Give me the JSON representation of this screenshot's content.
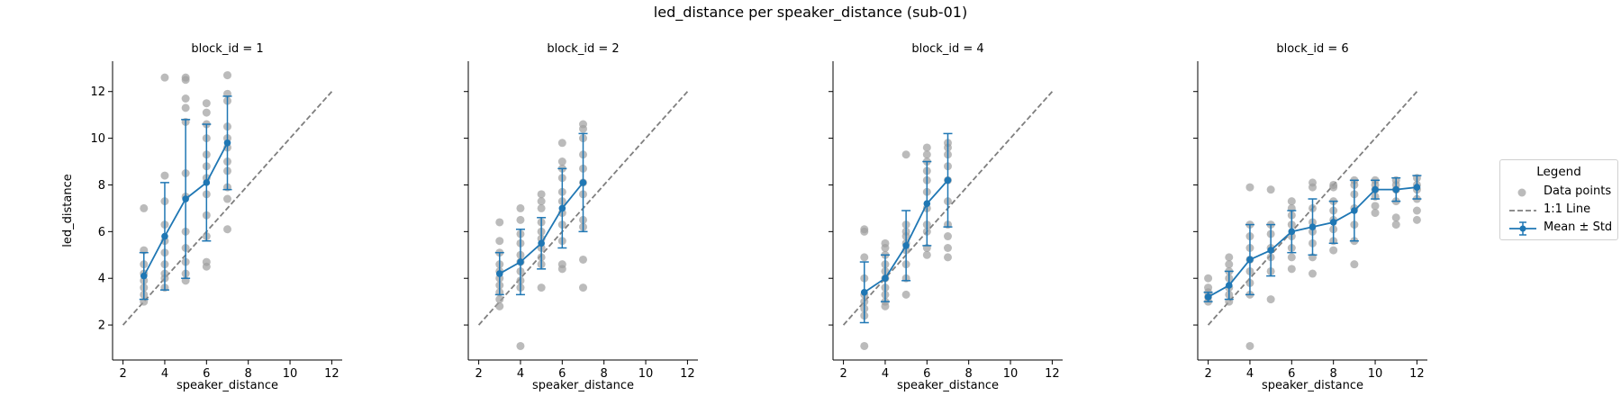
{
  "figure": {
    "title": "led_distance per speaker_distance (sub-01)",
    "xlabel": "speaker_distance",
    "ylabel": "led_distance"
  },
  "legend": {
    "title": "Legend",
    "items": [
      {
        "label": "Data points",
        "kind": "scatter"
      },
      {
        "label": "1:1 Line",
        "kind": "dashed-line"
      },
      {
        "label": "Mean ± Std",
        "kind": "errorbar"
      }
    ]
  },
  "colors": {
    "points": "#9e9e9e",
    "mean": "#1f77b4",
    "identity": "#7f7f7f",
    "axis": "#000000"
  },
  "chart_data": [
    {
      "type": "scatter",
      "title": "block_id = 1",
      "xlabel": "speaker_distance",
      "ylabel": "led_distance",
      "xlim": [
        1.5,
        12.5
      ],
      "ylim": [
        0.5,
        13.3
      ],
      "xticks": [
        2,
        4,
        6,
        8,
        10,
        12
      ],
      "yticks": [
        2,
        4,
        6,
        8,
        10,
        12
      ],
      "identity_line": [
        [
          2,
          2
        ],
        [
          12,
          12
        ]
      ],
      "points": [
        [
          3,
          3.0
        ],
        [
          3,
          3.3
        ],
        [
          3,
          3.6
        ],
        [
          3,
          3.9
        ],
        [
          3,
          4.2
        ],
        [
          3,
          4.6
        ],
        [
          3,
          5.2
        ],
        [
          3,
          7.0
        ],
        [
          4,
          3.6
        ],
        [
          4,
          4.0
        ],
        [
          4,
          4.2
        ],
        [
          4,
          4.6
        ],
        [
          4,
          5.1
        ],
        [
          4,
          5.6
        ],
        [
          4,
          6.3
        ],
        [
          4,
          7.3
        ],
        [
          4,
          8.4
        ],
        [
          4,
          12.6
        ],
        [
          5,
          3.9
        ],
        [
          5,
          4.2
        ],
        [
          5,
          4.7
        ],
        [
          5,
          5.3
        ],
        [
          5,
          6.0
        ],
        [
          5,
          7.5
        ],
        [
          5,
          8.5
        ],
        [
          5,
          10.7
        ],
        [
          5,
          11.3
        ],
        [
          5,
          11.7
        ],
        [
          5,
          12.5
        ],
        [
          5,
          12.6
        ],
        [
          6,
          4.5
        ],
        [
          6,
          4.7
        ],
        [
          6,
          5.8
        ],
        [
          6,
          6.7
        ],
        [
          6,
          7.6
        ],
        [
          6,
          8.3
        ],
        [
          6,
          8.8
        ],
        [
          6,
          9.3
        ],
        [
          6,
          10.0
        ],
        [
          6,
          10.6
        ],
        [
          6,
          11.1
        ],
        [
          6,
          11.5
        ],
        [
          7,
          6.1
        ],
        [
          7,
          7.4
        ],
        [
          7,
          7.9
        ],
        [
          7,
          8.6
        ],
        [
          7,
          9.0
        ],
        [
          7,
          9.6
        ],
        [
          7,
          10.0
        ],
        [
          7,
          10.5
        ],
        [
          7,
          11.6
        ],
        [
          7,
          11.9
        ],
        [
          7,
          12.7
        ]
      ],
      "series": [
        {
          "name": "Mean ± Std",
          "x": [
            3,
            4,
            5,
            6,
            7
          ],
          "y": [
            4.1,
            5.8,
            7.4,
            8.1,
            9.8
          ],
          "std": [
            1.0,
            2.3,
            3.4,
            2.5,
            2.0
          ]
        }
      ]
    },
    {
      "type": "scatter",
      "title": "block_id = 2",
      "xlabel": "speaker_distance",
      "xlim": [
        1.5,
        12.5
      ],
      "ylim": [
        0.5,
        13.3
      ],
      "xticks": [
        2,
        4,
        6,
        8,
        10,
        12
      ],
      "yticks": [
        2,
        4,
        6,
        8,
        10,
        12
      ],
      "identity_line": [
        [
          2,
          2
        ],
        [
          12,
          12
        ]
      ],
      "points": [
        [
          3,
          2.8
        ],
        [
          3,
          3.1
        ],
        [
          3,
          3.4
        ],
        [
          3,
          3.7
        ],
        [
          3,
          4.0
        ],
        [
          3,
          4.3
        ],
        [
          3,
          4.6
        ],
        [
          3,
          5.1
        ],
        [
          3,
          5.6
        ],
        [
          3,
          6.4
        ],
        [
          4,
          1.1
        ],
        [
          4,
          3.6
        ],
        [
          4,
          3.9
        ],
        [
          4,
          4.3
        ],
        [
          4,
          4.7
        ],
        [
          4,
          5.0
        ],
        [
          4,
          5.5
        ],
        [
          4,
          5.9
        ],
        [
          4,
          6.5
        ],
        [
          4,
          7.0
        ],
        [
          5,
          3.6
        ],
        [
          5,
          4.6
        ],
        [
          5,
          4.9
        ],
        [
          5,
          5.3
        ],
        [
          5,
          5.7
        ],
        [
          5,
          6.0
        ],
        [
          5,
          6.4
        ],
        [
          5,
          7.0
        ],
        [
          5,
          7.3
        ],
        [
          5,
          7.6
        ],
        [
          6,
          4.4
        ],
        [
          6,
          4.6
        ],
        [
          6,
          5.6
        ],
        [
          6,
          6.3
        ],
        [
          6,
          6.8
        ],
        [
          6,
          7.3
        ],
        [
          6,
          7.7
        ],
        [
          6,
          8.3
        ],
        [
          6,
          8.7
        ],
        [
          6,
          9.0
        ],
        [
          6,
          9.8
        ],
        [
          7,
          3.6
        ],
        [
          7,
          4.8
        ],
        [
          7,
          6.2
        ],
        [
          7,
          6.5
        ],
        [
          7,
          7.6
        ],
        [
          7,
          8.1
        ],
        [
          7,
          8.7
        ],
        [
          7,
          9.3
        ],
        [
          7,
          10.0
        ],
        [
          7,
          10.4
        ],
        [
          7,
          10.6
        ]
      ],
      "series": [
        {
          "name": "Mean ± Std",
          "x": [
            3,
            4,
            5,
            6,
            7
          ],
          "y": [
            4.2,
            4.7,
            5.5,
            7.0,
            8.1
          ],
          "std": [
            0.9,
            1.4,
            1.1,
            1.7,
            2.1
          ]
        }
      ]
    },
    {
      "type": "scatter",
      "title": "block_id = 4",
      "xlabel": "speaker_distance",
      "xlim": [
        1.5,
        12.5
      ],
      "ylim": [
        0.5,
        13.3
      ],
      "xticks": [
        2,
        4,
        6,
        8,
        10,
        12
      ],
      "yticks": [
        2,
        4,
        6,
        8,
        10,
        12
      ],
      "identity_line": [
        [
          2,
          2
        ],
        [
          12,
          12
        ]
      ],
      "points": [
        [
          3,
          1.1
        ],
        [
          3,
          2.4
        ],
        [
          3,
          2.7
        ],
        [
          3,
          3.0
        ],
        [
          3,
          3.3
        ],
        [
          3,
          4.0
        ],
        [
          3,
          4.9
        ],
        [
          3,
          6.0
        ],
        [
          3,
          6.1
        ],
        [
          4,
          2.8
        ],
        [
          4,
          3.0
        ],
        [
          4,
          3.3
        ],
        [
          4,
          3.6
        ],
        [
          4,
          4.0
        ],
        [
          4,
          4.3
        ],
        [
          4,
          4.6
        ],
        [
          4,
          5.0
        ],
        [
          4,
          5.3
        ],
        [
          4,
          5.5
        ],
        [
          5,
          3.3
        ],
        [
          5,
          4.0
        ],
        [
          5,
          4.6
        ],
        [
          5,
          5.2
        ],
        [
          5,
          5.5
        ],
        [
          5,
          5.8
        ],
        [
          5,
          6.0
        ],
        [
          5,
          6.3
        ],
        [
          5,
          9.3
        ],
        [
          6,
          5.0
        ],
        [
          6,
          5.3
        ],
        [
          6,
          6.0
        ],
        [
          6,
          6.3
        ],
        [
          6,
          7.0
        ],
        [
          6,
          7.7
        ],
        [
          6,
          8.2
        ],
        [
          6,
          8.6
        ],
        [
          6,
          9.0
        ],
        [
          6,
          9.3
        ],
        [
          6,
          9.6
        ],
        [
          7,
          4.9
        ],
        [
          7,
          5.3
        ],
        [
          7,
          5.8
        ],
        [
          7,
          6.3
        ],
        [
          7,
          7.3
        ],
        [
          7,
          8.2
        ],
        [
          7,
          8.8
        ],
        [
          7,
          9.3
        ],
        [
          7,
          9.6
        ],
        [
          7,
          9.8
        ]
      ],
      "series": [
        {
          "name": "Mean ± Std",
          "x": [
            3,
            4,
            5,
            6,
            7
          ],
          "y": [
            3.4,
            4.0,
            5.4,
            7.2,
            8.2
          ],
          "std": [
            1.3,
            1.0,
            1.5,
            1.8,
            2.0
          ]
        }
      ]
    },
    {
      "type": "scatter",
      "title": "block_id = 6",
      "xlabel": "speaker_distance",
      "xlim": [
        1.5,
        12.5
      ],
      "ylim": [
        0.5,
        13.3
      ],
      "xticks": [
        2,
        4,
        6,
        8,
        10,
        12
      ],
      "yticks": [
        2,
        4,
        6,
        8,
        10,
        12
      ],
      "identity_line": [
        [
          2,
          2
        ],
        [
          12,
          12
        ]
      ],
      "points": [
        [
          2,
          3.0
        ],
        [
          2,
          3.2
        ],
        [
          2,
          3.4
        ],
        [
          2,
          3.6
        ],
        [
          2,
          4.0
        ],
        [
          3,
          3.0
        ],
        [
          3,
          3.3
        ],
        [
          3,
          3.6
        ],
        [
          3,
          4.0
        ],
        [
          3,
          4.3
        ],
        [
          3,
          4.6
        ],
        [
          3,
          4.9
        ],
        [
          4,
          1.1
        ],
        [
          4,
          3.3
        ],
        [
          4,
          3.8
        ],
        [
          4,
          4.3
        ],
        [
          4,
          4.8
        ],
        [
          4,
          5.3
        ],
        [
          4,
          5.8
        ],
        [
          4,
          6.3
        ],
        [
          4,
          7.9
        ],
        [
          5,
          3.1
        ],
        [
          5,
          4.3
        ],
        [
          5,
          4.9
        ],
        [
          5,
          5.3
        ],
        [
          5,
          5.9
        ],
        [
          5,
          6.3
        ],
        [
          5,
          7.8
        ],
        [
          6,
          4.4
        ],
        [
          6,
          4.9
        ],
        [
          6,
          5.3
        ],
        [
          6,
          5.8
        ],
        [
          6,
          6.3
        ],
        [
          6,
          6.7
        ],
        [
          6,
          7.0
        ],
        [
          6,
          7.3
        ],
        [
          7,
          4.2
        ],
        [
          7,
          4.9
        ],
        [
          7,
          5.5
        ],
        [
          7,
          6.0
        ],
        [
          7,
          6.4
        ],
        [
          7,
          7.0
        ],
        [
          7,
          7.9
        ],
        [
          7,
          8.1
        ],
        [
          8,
          5.2
        ],
        [
          8,
          5.6
        ],
        [
          8,
          6.1
        ],
        [
          8,
          6.5
        ],
        [
          8,
          6.9
        ],
        [
          8,
          7.3
        ],
        [
          8,
          7.9
        ],
        [
          8,
          8.0
        ],
        [
          9,
          4.6
        ],
        [
          9,
          5.6
        ],
        [
          9,
          6.3
        ],
        [
          9,
          7.0
        ],
        [
          9,
          7.6
        ],
        [
          9,
          8.0
        ],
        [
          9,
          8.2
        ],
        [
          10,
          6.8
        ],
        [
          10,
          7.1
        ],
        [
          10,
          7.5
        ],
        [
          10,
          7.8
        ],
        [
          10,
          8.0
        ],
        [
          10,
          8.2
        ],
        [
          11,
          6.3
        ],
        [
          11,
          6.6
        ],
        [
          11,
          7.3
        ],
        [
          11,
          7.8
        ],
        [
          11,
          8.0
        ],
        [
          11,
          8.2
        ],
        [
          12,
          6.5
        ],
        [
          12,
          6.9
        ],
        [
          12,
          7.4
        ],
        [
          12,
          7.8
        ],
        [
          12,
          8.0
        ],
        [
          12,
          8.3
        ]
      ],
      "series": [
        {
          "name": "Mean ± Std",
          "x": [
            2,
            3,
            4,
            5,
            6,
            7,
            8,
            9,
            10,
            11,
            12
          ],
          "y": [
            3.2,
            3.7,
            4.8,
            5.2,
            6.0,
            6.2,
            6.4,
            6.9,
            7.8,
            7.8,
            7.9
          ],
          "std": [
            0.2,
            0.6,
            1.5,
            1.1,
            0.9,
            1.2,
            0.9,
            1.3,
            0.4,
            0.5,
            0.5
          ]
        }
      ]
    }
  ]
}
